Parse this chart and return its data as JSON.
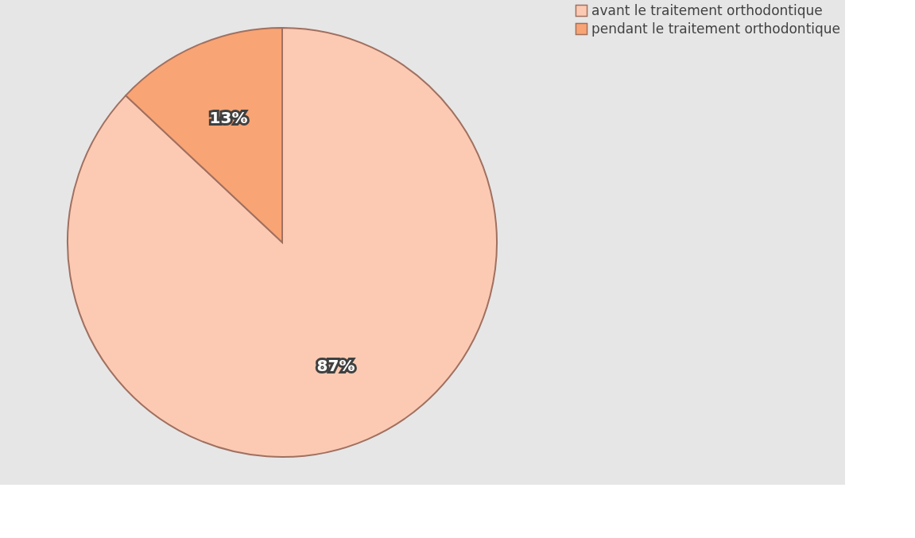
{
  "chart_data": {
    "type": "pie",
    "categories": [
      "avant le traitement orthodontique",
      "pendant le traitement orthodontique"
    ],
    "values": [
      87,
      13
    ],
    "colors": [
      "#fccab3",
      "#f9a474"
    ],
    "value_labels": [
      "87%",
      "13%"
    ],
    "legend": "right"
  }
}
